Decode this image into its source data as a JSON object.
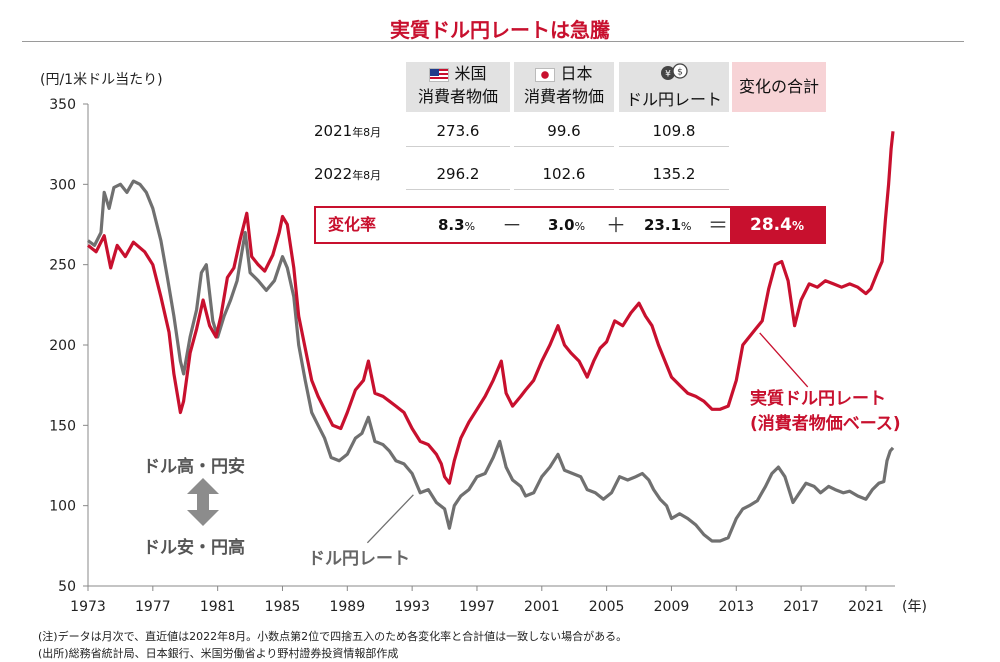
{
  "title": "実質ドル円レートは急騰",
  "y_unit_label": "(円/1米ドル当たり)",
  "x_unit_label": "(年)",
  "side_labels": {
    "top": "ドル高・円安",
    "bottom": "ドル安・円高"
  },
  "notes": [
    "(注)データは月次で、直近値は2022年8月。小数点第2位で四捨五入のため各変化率と合計値は一致しない場合がある。",
    "(出所)総務省統計局、日本銀行、米国労働省より野村證券投資情報部作成"
  ],
  "table": {
    "headers": [
      {
        "icon": "us-flag-icon",
        "line1": "米国",
        "line2": "消費者物価"
      },
      {
        "icon": "japan-flag-icon",
        "line1": "日本",
        "line2": "消費者物価"
      },
      {
        "icon": "currency-exchange-icon",
        "line1": "",
        "line2": "ドル円レート"
      },
      {
        "icon": "",
        "line1": "",
        "line2": "変化の合計"
      }
    ],
    "rows": [
      {
        "label": "2021",
        "suffix": "年8月",
        "values": [
          "273.6",
          "99.6",
          "109.8"
        ]
      },
      {
        "label": "2022",
        "suffix": "年8月",
        "values": [
          "296.2",
          "102.6",
          "135.2"
        ]
      }
    ],
    "change_row": {
      "label": "変化率",
      "values": [
        "8.3",
        "3.0",
        "23.1"
      ],
      "unit": "%",
      "operators": [
        "－",
        "＋",
        "＝"
      ],
      "total": "28.4",
      "total_unit": "%"
    }
  },
  "colors": {
    "real_rate": "#c8102e",
    "nominal_rate": "#707070",
    "accent": "#c8102e"
  },
  "chart_data": {
    "type": "line",
    "y_axis_label": "(円/1米ドル当たり)",
    "x_axis_label": "(年)",
    "ylim": [
      50,
      350
    ],
    "yticks": [
      50,
      100,
      150,
      200,
      250,
      300,
      350
    ],
    "xlim": [
      1973.0,
      2022.67
    ],
    "xticks": [
      1973,
      1977,
      1981,
      1985,
      1989,
      1993,
      1997,
      2001,
      2005,
      2009,
      2013,
      2017,
      2021
    ],
    "grid": false,
    "series": [
      {
        "name": "実質ドル円レート(消費者物価ベース)",
        "color": "#c8102e",
        "points": [
          [
            1973.0,
            262
          ],
          [
            1973.5,
            258
          ],
          [
            1974.0,
            268
          ],
          [
            1974.4,
            248
          ],
          [
            1974.8,
            262
          ],
          [
            1975.3,
            255
          ],
          [
            1975.8,
            264
          ],
          [
            1976.5,
            258
          ],
          [
            1977.0,
            250
          ],
          [
            1977.5,
            230
          ],
          [
            1978.0,
            208
          ],
          [
            1978.3,
            182
          ],
          [
            1978.7,
            158
          ],
          [
            1978.9,
            165
          ],
          [
            1979.3,
            195
          ],
          [
            1979.7,
            210
          ],
          [
            1980.1,
            228
          ],
          [
            1980.5,
            212
          ],
          [
            1980.9,
            205
          ],
          [
            1981.2,
            218
          ],
          [
            1981.6,
            242
          ],
          [
            1982.0,
            248
          ],
          [
            1982.4,
            266
          ],
          [
            1982.8,
            282
          ],
          [
            1983.1,
            255
          ],
          [
            1983.5,
            250
          ],
          [
            1983.9,
            246
          ],
          [
            1984.4,
            256
          ],
          [
            1984.8,
            270
          ],
          [
            1985.0,
            280
          ],
          [
            1985.3,
            275
          ],
          [
            1985.7,
            248
          ],
          [
            1986.0,
            218
          ],
          [
            1986.4,
            198
          ],
          [
            1986.8,
            178
          ],
          [
            1987.2,
            168
          ],
          [
            1987.7,
            158
          ],
          [
            1988.1,
            150
          ],
          [
            1988.6,
            148
          ],
          [
            1989.0,
            158
          ],
          [
            1989.5,
            172
          ],
          [
            1990.0,
            178
          ],
          [
            1990.3,
            190
          ],
          [
            1990.7,
            170
          ],
          [
            1991.2,
            168
          ],
          [
            1991.6,
            165
          ],
          [
            1992.0,
            162
          ],
          [
            1992.5,
            158
          ],
          [
            1993.0,
            148
          ],
          [
            1993.5,
            140
          ],
          [
            1994.0,
            138
          ],
          [
            1994.5,
            132
          ],
          [
            1994.8,
            126
          ],
          [
            1995.0,
            118
          ],
          [
            1995.3,
            114
          ],
          [
            1995.6,
            128
          ],
          [
            1996.0,
            142
          ],
          [
            1996.5,
            152
          ],
          [
            1997.0,
            160
          ],
          [
            1997.5,
            168
          ],
          [
            1998.0,
            178
          ],
          [
            1998.5,
            190
          ],
          [
            1998.8,
            170
          ],
          [
            1999.2,
            162
          ],
          [
            1999.7,
            168
          ],
          [
            2000.0,
            172
          ],
          [
            2000.5,
            178
          ],
          [
            2001.0,
            190
          ],
          [
            2001.5,
            200
          ],
          [
            2002.0,
            212
          ],
          [
            2002.4,
            200
          ],
          [
            2002.8,
            195
          ],
          [
            2003.3,
            190
          ],
          [
            2003.8,
            180
          ],
          [
            2004.2,
            190
          ],
          [
            2004.6,
            198
          ],
          [
            2005.0,
            202
          ],
          [
            2005.5,
            215
          ],
          [
            2006.0,
            212
          ],
          [
            2006.5,
            220
          ],
          [
            2007.0,
            226
          ],
          [
            2007.4,
            218
          ],
          [
            2007.8,
            212
          ],
          [
            2008.2,
            200
          ],
          [
            2008.6,
            190
          ],
          [
            2009.0,
            180
          ],
          [
            2009.5,
            175
          ],
          [
            2010.0,
            170
          ],
          [
            2010.5,
            168
          ],
          [
            2011.0,
            165
          ],
          [
            2011.5,
            160
          ],
          [
            2012.0,
            160
          ],
          [
            2012.5,
            162
          ],
          [
            2013.0,
            178
          ],
          [
            2013.4,
            200
          ],
          [
            2013.8,
            205
          ],
          [
            2014.2,
            210
          ],
          [
            2014.6,
            215
          ],
          [
            2015.0,
            235
          ],
          [
            2015.4,
            250
          ],
          [
            2015.8,
            252
          ],
          [
            2016.2,
            240
          ],
          [
            2016.6,
            212
          ],
          [
            2017.0,
            228
          ],
          [
            2017.5,
            238
          ],
          [
            2018.0,
            236
          ],
          [
            2018.5,
            240
          ],
          [
            2019.0,
            238
          ],
          [
            2019.5,
            236
          ],
          [
            2020.0,
            238
          ],
          [
            2020.5,
            236
          ],
          [
            2021.0,
            232
          ],
          [
            2021.3,
            235
          ],
          [
            2021.7,
            245
          ],
          [
            2022.0,
            252
          ],
          [
            2022.2,
            278
          ],
          [
            2022.4,
            300
          ],
          [
            2022.55,
            322
          ],
          [
            2022.67,
            333
          ]
        ]
      },
      {
        "name": "ドル円レート",
        "color": "#707070",
        "points": [
          [
            1973.0,
            265
          ],
          [
            1973.4,
            262
          ],
          [
            1973.8,
            270
          ],
          [
            1974.0,
            295
          ],
          [
            1974.3,
            285
          ],
          [
            1974.6,
            298
          ],
          [
            1975.0,
            300
          ],
          [
            1975.4,
            295
          ],
          [
            1975.8,
            302
          ],
          [
            1976.2,
            300
          ],
          [
            1976.6,
            295
          ],
          [
            1977.0,
            285
          ],
          [
            1977.5,
            265
          ],
          [
            1977.9,
            242
          ],
          [
            1978.3,
            218
          ],
          [
            1978.7,
            190
          ],
          [
            1978.9,
            182
          ],
          [
            1979.3,
            205
          ],
          [
            1979.7,
            222
          ],
          [
            1980.0,
            245
          ],
          [
            1980.3,
            250
          ],
          [
            1980.7,
            215
          ],
          [
            1981.0,
            205
          ],
          [
            1981.4,
            218
          ],
          [
            1981.8,
            228
          ],
          [
            1982.2,
            240
          ],
          [
            1982.7,
            270
          ],
          [
            1983.0,
            245
          ],
          [
            1983.5,
            240
          ],
          [
            1984.0,
            234
          ],
          [
            1984.5,
            240
          ],
          [
            1985.0,
            255
          ],
          [
            1985.3,
            248
          ],
          [
            1985.7,
            230
          ],
          [
            1986.0,
            200
          ],
          [
            1986.4,
            178
          ],
          [
            1986.8,
            158
          ],
          [
            1987.2,
            150
          ],
          [
            1987.6,
            142
          ],
          [
            1988.0,
            130
          ],
          [
            1988.5,
            128
          ],
          [
            1989.0,
            132
          ],
          [
            1989.5,
            142
          ],
          [
            1989.9,
            145
          ],
          [
            1990.3,
            155
          ],
          [
            1990.7,
            140
          ],
          [
            1991.2,
            138
          ],
          [
            1991.6,
            134
          ],
          [
            1992.0,
            128
          ],
          [
            1992.5,
            126
          ],
          [
            1993.0,
            120
          ],
          [
            1993.5,
            108
          ],
          [
            1994.0,
            110
          ],
          [
            1994.5,
            102
          ],
          [
            1995.0,
            98
          ],
          [
            1995.3,
            86
          ],
          [
            1995.6,
            100
          ],
          [
            1996.0,
            106
          ],
          [
            1996.5,
            110
          ],
          [
            1997.0,
            118
          ],
          [
            1997.5,
            120
          ],
          [
            1998.0,
            130
          ],
          [
            1998.4,
            140
          ],
          [
            1998.8,
            124
          ],
          [
            1999.2,
            116
          ],
          [
            1999.7,
            112
          ],
          [
            2000.0,
            106
          ],
          [
            2000.5,
            108
          ],
          [
            2001.0,
            118
          ],
          [
            2001.5,
            124
          ],
          [
            2002.0,
            132
          ],
          [
            2002.4,
            122
          ],
          [
            2002.9,
            120
          ],
          [
            2003.4,
            118
          ],
          [
            2003.8,
            110
          ],
          [
            2004.3,
            108
          ],
          [
            2004.8,
            104
          ],
          [
            2005.3,
            108
          ],
          [
            2005.8,
            118
          ],
          [
            2006.3,
            116
          ],
          [
            2006.8,
            118
          ],
          [
            2007.2,
            120
          ],
          [
            2007.6,
            116
          ],
          [
            2007.9,
            110
          ],
          [
            2008.3,
            104
          ],
          [
            2008.7,
            100
          ],
          [
            2009.0,
            92
          ],
          [
            2009.5,
            95
          ],
          [
            2010.0,
            92
          ],
          [
            2010.5,
            88
          ],
          [
            2011.0,
            82
          ],
          [
            2011.5,
            78
          ],
          [
            2012.0,
            78
          ],
          [
            2012.5,
            80
          ],
          [
            2013.0,
            92
          ],
          [
            2013.4,
            98
          ],
          [
            2013.8,
            100
          ],
          [
            2014.3,
            103
          ],
          [
            2014.8,
            112
          ],
          [
            2015.2,
            120
          ],
          [
            2015.6,
            124
          ],
          [
            2016.0,
            118
          ],
          [
            2016.5,
            102
          ],
          [
            2016.9,
            108
          ],
          [
            2017.3,
            114
          ],
          [
            2017.8,
            112
          ],
          [
            2018.2,
            108
          ],
          [
            2018.7,
            112
          ],
          [
            2019.1,
            110
          ],
          [
            2019.6,
            108
          ],
          [
            2020.0,
            109
          ],
          [
            2020.5,
            106
          ],
          [
            2021.0,
            104
          ],
          [
            2021.4,
            110
          ],
          [
            2021.8,
            114
          ],
          [
            2022.1,
            115
          ],
          [
            2022.3,
            128
          ],
          [
            2022.5,
            134
          ],
          [
            2022.67,
            136
          ]
        ]
      }
    ],
    "annotations": [
      {
        "series": 0,
        "text_line1": "実質ドル円レート",
        "text_line2": "(消費者物価ベース)",
        "at": [
          2014.2,
          210
        ]
      },
      {
        "series": 1,
        "text": "ドル円レート",
        "at": [
          1993.2,
          108
        ]
      }
    ]
  }
}
